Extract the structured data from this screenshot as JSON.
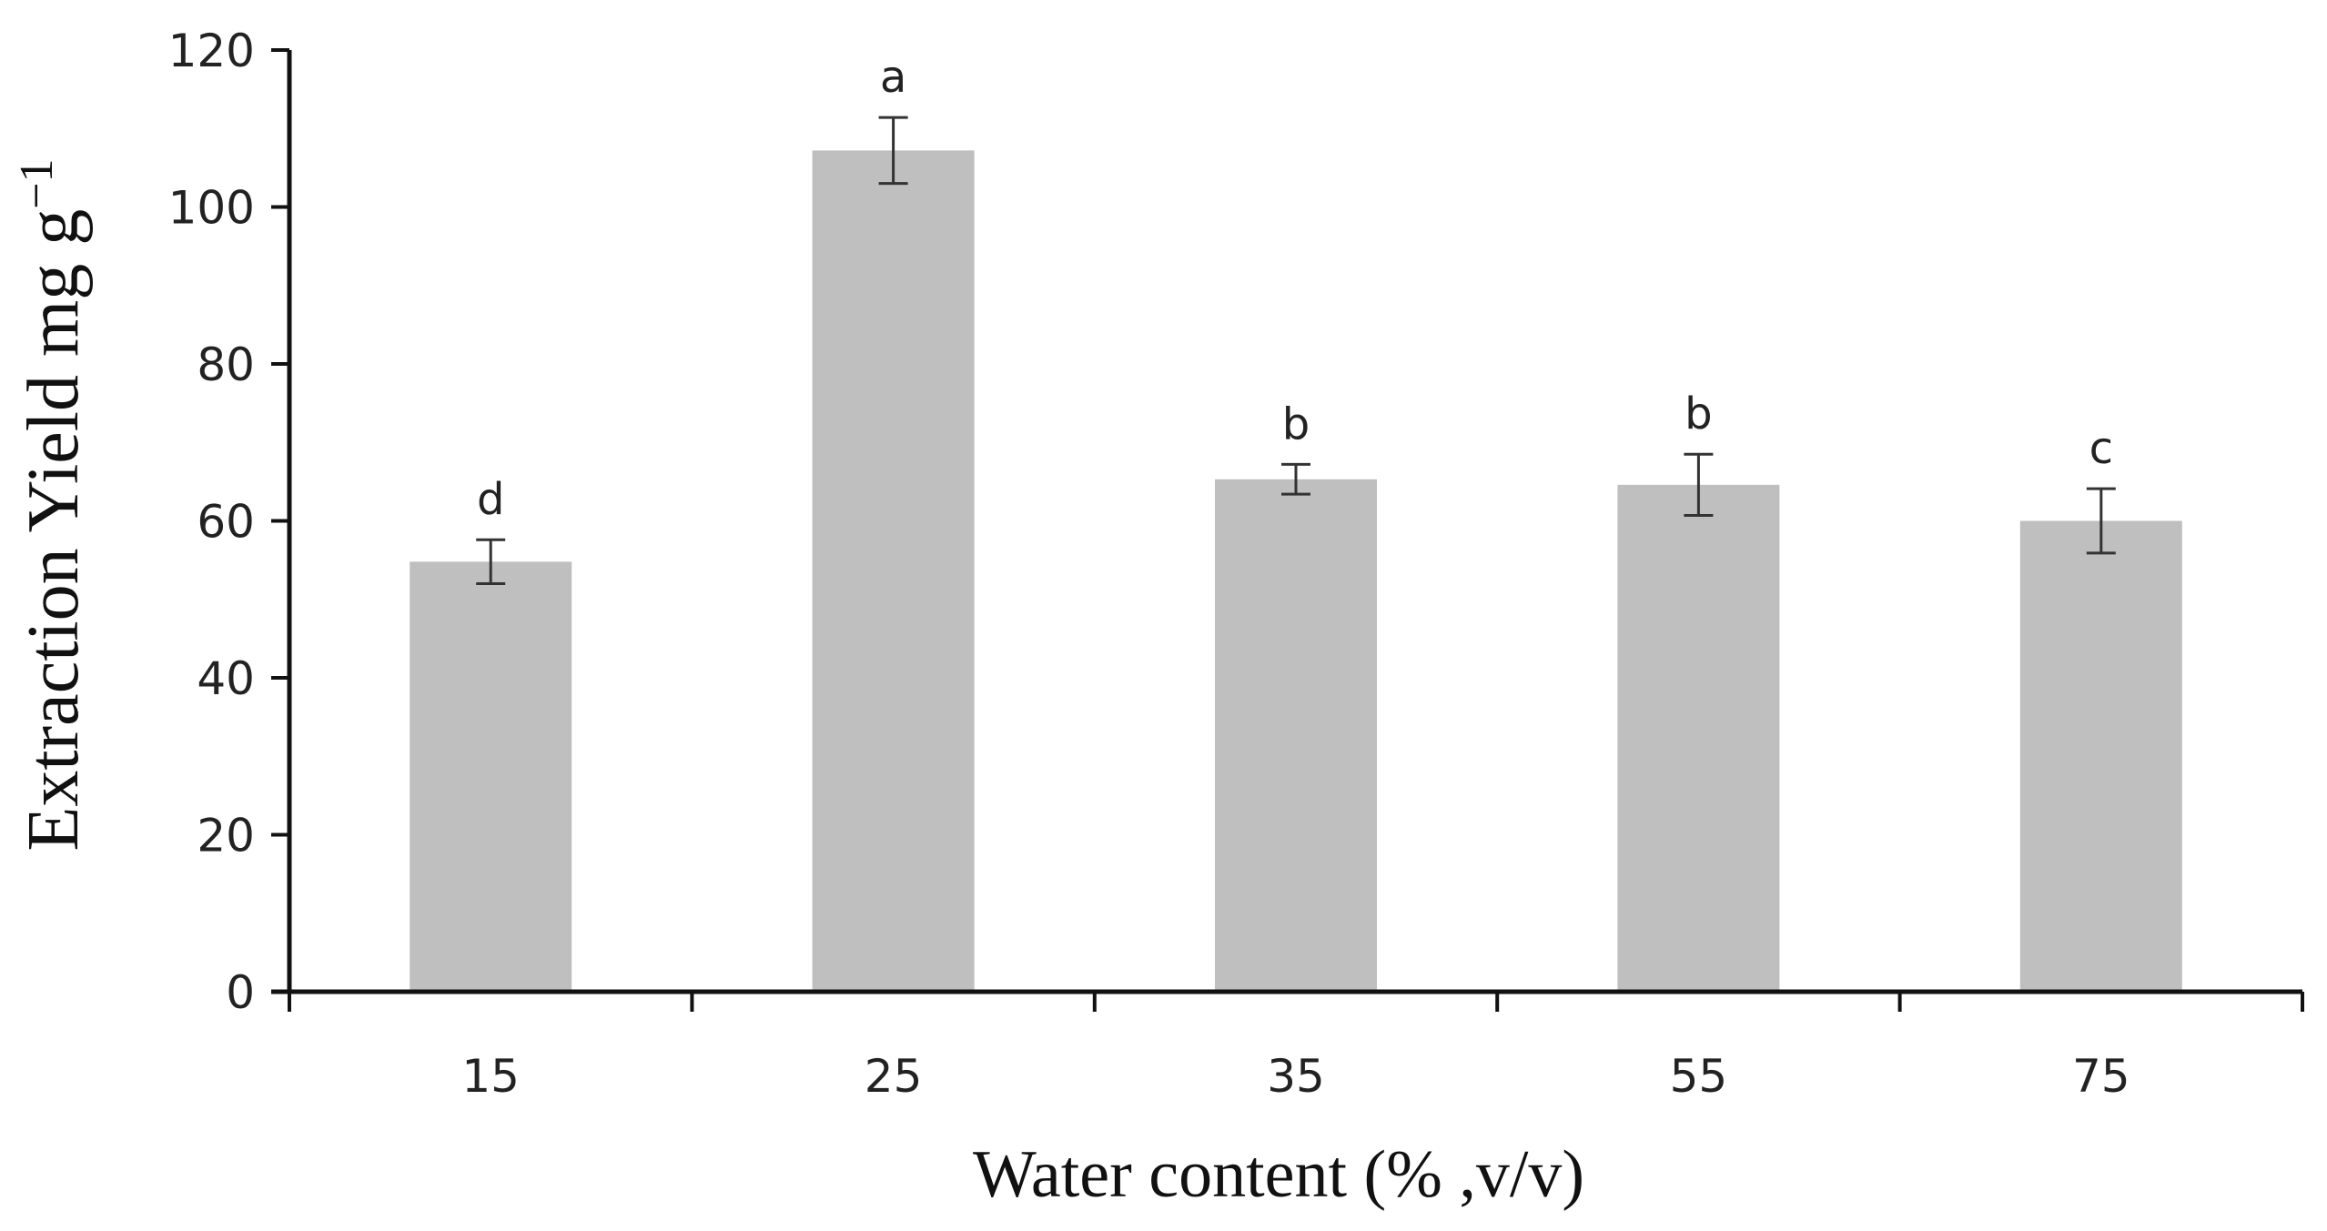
{
  "chart_data": {
    "type": "bar",
    "title": "",
    "xlabel": "Water content (% ,v/v)",
    "ylabel": {
      "main": "Extraction Yield mg g",
      "superscript": "−1"
    },
    "categories": [
      "15",
      "25",
      "35",
      "55",
      "75"
    ],
    "values": [
      54.8,
      107.2,
      65.3,
      64.6,
      60.0
    ],
    "error": [
      2.8,
      4.2,
      1.9,
      3.9,
      4.1
    ],
    "significance": [
      "d",
      "a",
      "b",
      "b",
      "c"
    ],
    "ylim": [
      0,
      120
    ],
    "yticks": [
      0,
      20,
      40,
      60,
      80,
      100,
      120
    ],
    "bar_color": "#bfbfbf",
    "axis_color": "#111111",
    "grid": false,
    "legend": "none"
  }
}
